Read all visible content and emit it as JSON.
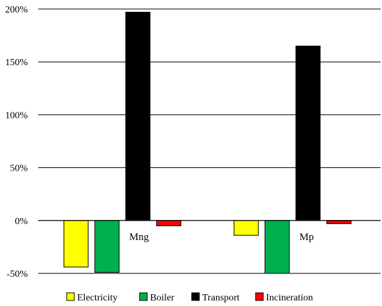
{
  "chart_data": {
    "type": "bar",
    "categories": [
      "Mng",
      "Mp"
    ],
    "series": [
      {
        "name": "Electricity",
        "values": [
          -44,
          -14
        ],
        "color": "#ffff00"
      },
      {
        "name": "Boiler",
        "values": [
          -49,
          -50
        ],
        "color": "#00b050"
      },
      {
        "name": "Transport",
        "values": [
          197,
          165
        ],
        "color": "#000000"
      },
      {
        "name": "Incineration",
        "values": [
          -5,
          -3
        ],
        "color": "#ff0000"
      }
    ],
    "ylim": [
      -50,
      200
    ],
    "yticks": [
      -50,
      0,
      50,
      100,
      150,
      200
    ],
    "ytick_labels": [
      "-50%",
      "0%",
      "50%",
      "100%",
      "150%",
      "200%"
    ],
    "grid": true,
    "legend_position": "bottom",
    "title": "",
    "xlabel": "",
    "ylabel": ""
  }
}
